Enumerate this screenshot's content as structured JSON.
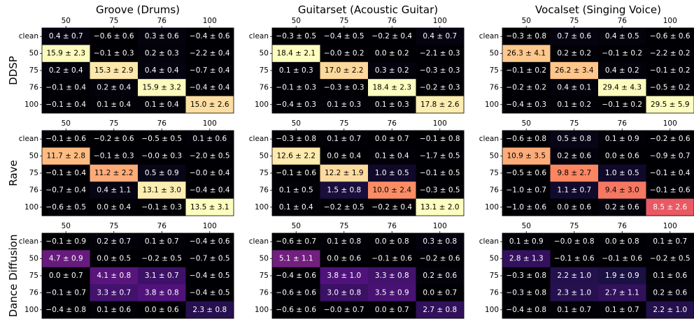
{
  "figure": {
    "columns": [
      {
        "title": "Groove (Drums)"
      },
      {
        "title": "Guitarset (Acoustic Guitar)"
      },
      {
        "title": "Vocalset (Singing Voice)"
      }
    ],
    "rows": [
      {
        "label": "DDSP"
      },
      {
        "label": "Rave"
      },
      {
        "label": "Dance Diffusion"
      }
    ]
  },
  "chart_data": [
    {
      "type": "heatmap",
      "title": "Groove (Drums)",
      "ylabel": "DDSP",
      "x_ticks": [
        "50",
        "75",
        "76",
        "100"
      ],
      "y_ticks": [
        "clean",
        "50",
        "75",
        "76",
        "100"
      ],
      "colormap": "magma",
      "vmin": 0,
      "vmax": 16,
      "values": [
        [
          0.4,
          -0.6,
          0.3,
          -0.4
        ],
        [
          15.9,
          -0.1,
          0.2,
          -2.2
        ],
        [
          0.2,
          15.3,
          0.4,
          -0.7
        ],
        [
          -0.1,
          0.2,
          15.9,
          -0.4
        ],
        [
          -0.1,
          0.1,
          0.1,
          15.0
        ]
      ],
      "labels": [
        [
          "0.4 ± 0.7",
          "−0.6 ± 0.6",
          "0.3 ± 0.6",
          "−0.4 ± 0.6"
        ],
        [
          "15.9 ± 2.3",
          "−0.1 ± 0.3",
          "0.2 ± 0.3",
          "−2.2 ± 0.4"
        ],
        [
          "0.2 ± 0.4",
          "15.3 ± 2.9",
          "0.4 ± 0.4",
          "−0.7 ± 0.4"
        ],
        [
          "−0.1 ± 0.4",
          "0.2 ± 0.4",
          "15.9 ± 3.2",
          "−0.4 ± 0.4"
        ],
        [
          "−0.1 ± 0.4",
          "0.1 ± 0.4",
          "0.1 ± 0.4",
          "15.0 ± 2.6"
        ]
      ]
    },
    {
      "type": "heatmap",
      "title": "Guitarset (Acoustic Guitar)",
      "ylabel": "DDSP",
      "x_ticks": [
        "50",
        "75",
        "76",
        "100"
      ],
      "y_ticks": [
        "clean",
        "50",
        "75",
        "76",
        "100"
      ],
      "colormap": "magma",
      "vmin": 0,
      "vmax": 18.4,
      "values": [
        [
          -0.3,
          -0.4,
          -0.2,
          0.4
        ],
        [
          18.4,
          -0.0,
          0.0,
          -2.1
        ],
        [
          0.1,
          17.0,
          0.3,
          -0.3
        ],
        [
          -0.1,
          -0.3,
          18.4,
          -0.2
        ],
        [
          -0.4,
          0.1,
          0.1,
          17.8
        ]
      ],
      "labels": [
        [
          "−0.3 ± 0.5",
          "−0.4 ± 0.5",
          "−0.2 ± 0.4",
          "0.4 ± 0.7"
        ],
        [
          "18.4 ± 2.1",
          "−0.0 ± 0.2",
          "0.0 ± 0.2",
          "−2.1 ± 0.3"
        ],
        [
          "0.1 ± 0.3",
          "17.0 ± 2.2",
          "0.3 ± 0.2",
          "−0.3 ± 0.3"
        ],
        [
          "−0.1 ± 0.3",
          "−0.3 ± 0.3",
          "18.4 ± 2.3",
          "−0.2 ± 0.3"
        ],
        [
          "−0.4 ± 0.3",
          "0.1 ± 0.3",
          "0.1 ± 0.3",
          "17.8 ± 2.6"
        ]
      ]
    },
    {
      "type": "heatmap",
      "title": "Vocalset (Singing Voice)",
      "ylabel": "DDSP",
      "x_ticks": [
        "50",
        "75",
        "76",
        "100"
      ],
      "y_ticks": [
        "clean",
        "50",
        "75",
        "76",
        "100"
      ],
      "colormap": "magma",
      "vmin": 0,
      "vmax": 29.5,
      "values": [
        [
          -0.3,
          0.7,
          0.4,
          -0.6
        ],
        [
          26.3,
          0.2,
          -0.1,
          -2.2
        ],
        [
          -0.1,
          26.2,
          0.4,
          -0.1
        ],
        [
          -0.2,
          0.4,
          29.4,
          -0.5
        ],
        [
          -0.4,
          0.1,
          -0.1,
          29.5
        ]
      ],
      "labels": [
        [
          "−0.3 ± 0.8",
          "0.7 ± 0.6",
          "0.4 ± 0.5",
          "−0.6 ± 0.6"
        ],
        [
          "26.3 ± 4.1",
          "0.2 ± 0.2",
          "−0.1 ± 0.2",
          "−2.2 ± 0.2"
        ],
        [
          "−0.1 ± 0.2",
          "26.2 ± 3.4",
          "0.4 ± 0.2",
          "−0.1 ± 0.2"
        ],
        [
          "−0.2 ± 0.2",
          "0.4 ± 0.1",
          "29.4 ± 4.3",
          "−0.5 ± 0.2"
        ],
        [
          "−0.4 ± 0.3",
          "0.1 ± 0.2",
          "−0.1 ± 0.2",
          "29.5 ± 5.9"
        ]
      ]
    },
    {
      "type": "heatmap",
      "title": "",
      "ylabel": "Rave",
      "x_ticks": [
        "50",
        "75",
        "76",
        "100"
      ],
      "y_ticks": [
        "clean",
        "50",
        "75",
        "76",
        "100"
      ],
      "colormap": "magma",
      "vmin": 0,
      "vmax": 13.5,
      "values": [
        [
          -0.1,
          -0.2,
          -0.5,
          0.1
        ],
        [
          11.7,
          -0.1,
          -0.0,
          -2.0
        ],
        [
          -0.1,
          11.2,
          0.5,
          -0.0
        ],
        [
          -0.7,
          0.4,
          13.1,
          -0.4
        ],
        [
          -0.6,
          0.0,
          -0.1,
          13.5
        ]
      ],
      "labels": [
        [
          "−0.1 ± 0.6",
          "−0.2 ± 0.6",
          "−0.5 ± 0.5",
          "0.1 ± 0.6"
        ],
        [
          "11.7 ± 2.8",
          "−0.1 ± 0.3",
          "−0.0 ± 0.3",
          "−2.0 ± 0.5"
        ],
        [
          "−0.1 ± 0.4",
          "11.2 ± 2.2",
          "0.5 ± 0.9",
          "−0.0 ± 0.4"
        ],
        [
          "−0.7 ± 0.4",
          "0.4 ± 1.1",
          "13.1 ± 3.0",
          "−0.4 ± 0.4"
        ],
        [
          "−0.6 ± 0.5",
          "0.0 ± 0.4",
          "−0.1 ± 0.3",
          "13.5 ± 3.1"
        ]
      ]
    },
    {
      "type": "heatmap",
      "title": "",
      "ylabel": "Rave",
      "x_ticks": [
        "50",
        "75",
        "76",
        "100"
      ],
      "y_ticks": [
        "clean",
        "50",
        "75",
        "76",
        "100"
      ],
      "colormap": "magma",
      "vmin": 0,
      "vmax": 13.1,
      "values": [
        [
          -0.3,
          0.1,
          0.0,
          -0.1
        ],
        [
          12.6,
          0.0,
          0.1,
          -1.7
        ],
        [
          -0.1,
          12.2,
          1.0,
          -0.1
        ],
        [
          0.1,
          1.5,
          10.0,
          -0.3
        ],
        [
          0.1,
          -0.2,
          -0.2,
          13.1
        ]
      ],
      "labels": [
        [
          "−0.3 ± 0.8",
          "0.1 ± 0.7",
          "0.0 ± 0.7",
          "−0.1 ± 0.8"
        ],
        [
          "12.6 ± 2.2",
          "0.0 ± 0.4",
          "0.1 ± 0.4",
          "−1.7 ± 0.5"
        ],
        [
          "−0.1 ± 0.6",
          "12.2 ± 1.9",
          "1.0 ± 0.5",
          "−0.1 ± 0.5"
        ],
        [
          "0.1 ± 0.5",
          "1.5 ± 0.8",
          "10.0 ± 2.4",
          "−0.3 ± 0.5"
        ],
        [
          "0.1 ± 0.4",
          "−0.2 ± 0.5",
          "−0.2 ± 0.4",
          "13.1 ± 2.0"
        ]
      ]
    },
    {
      "type": "heatmap",
      "title": "",
      "ylabel": "Rave",
      "x_ticks": [
        "50",
        "75",
        "76",
        "100"
      ],
      "y_ticks": [
        "clean",
        "50",
        "75",
        "76",
        "100"
      ],
      "colormap": "magma",
      "vmin": 0,
      "vmax": 13.1,
      "values": [
        [
          -0.6,
          0.5,
          0.1,
          -0.2
        ],
        [
          10.9,
          0.2,
          0.0,
          -0.9
        ],
        [
          -0.5,
          9.8,
          1.0,
          -0.1
        ],
        [
          -1.0,
          1.1,
          9.4,
          -0.1
        ],
        [
          -1.0,
          0.0,
          0.2,
          8.5
        ]
      ],
      "labels": [
        [
          "−0.6 ± 0.8",
          "0.5 ± 0.8",
          "0.1 ± 0.9",
          "−0.2 ± 0.6"
        ],
        [
          "10.9 ± 3.5",
          "0.2 ± 0.6",
          "0.0 ± 0.6",
          "−0.9 ± 0.7"
        ],
        [
          "−0.5 ± 0.6",
          "9.8 ± 2.7",
          "1.0 ± 0.5",
          "−0.1 ± 0.4"
        ],
        [
          "−1.0 ± 0.7",
          "1.1 ± 0.7",
          "9.4 ± 3.0",
          "−0.1 ± 0.6"
        ],
        [
          "−1.0 ± 0.6",
          "0.0 ± 0.6",
          "0.2 ± 0.6",
          "8.5 ± 2.6"
        ]
      ]
    },
    {
      "type": "heatmap",
      "title": "",
      "ylabel": "Dance Diffusion",
      "x_ticks": [
        "50",
        "75",
        "76",
        "100"
      ],
      "y_ticks": [
        "clean",
        "50",
        "75",
        "76",
        "100"
      ],
      "colormap": "magma",
      "vmin": 0,
      "vmax": 15,
      "values": [
        [
          -0.1,
          0.2,
          0.1,
          -0.4
        ],
        [
          4.7,
          0.0,
          -0.2,
          -0.7
        ],
        [
          0.0,
          4.1,
          3.1,
          -0.4
        ],
        [
          -0.1,
          3.3,
          3.8,
          -0.4
        ],
        [
          -0.4,
          0.1,
          0.0,
          2.3
        ]
      ],
      "labels": [
        [
          "−0.1 ± 0.9",
          "0.2 ± 0.7",
          "0.1 ± 0.7",
          "−0.4 ± 0.6"
        ],
        [
          "4.7 ± 0.9",
          "0.0 ± 0.5",
          "−0.2 ± 0.5",
          "−0.7 ± 0.5"
        ],
        [
          "0.0 ± 0.7",
          "4.1 ± 0.8",
          "3.1 ± 0.7",
          "−0.4 ± 0.5"
        ],
        [
          "−0.1 ± 0.7",
          "3.3 ± 0.7",
          "3.8 ± 0.8",
          "−0.4 ± 0.5"
        ],
        [
          "−0.4 ± 0.8",
          "0.1 ± 0.6",
          "0.0 ± 0.6",
          "2.3 ± 0.8"
        ]
      ]
    },
    {
      "type": "heatmap",
      "title": "",
      "ylabel": "Dance Diffusion",
      "x_ticks": [
        "50",
        "75",
        "76",
        "100"
      ],
      "y_ticks": [
        "clean",
        "50",
        "75",
        "76",
        "100"
      ],
      "colormap": "magma",
      "vmin": 0,
      "vmax": 15,
      "values": [
        [
          -0.6,
          0.1,
          0.0,
          0.3
        ],
        [
          5.1,
          0.0,
          -0.1,
          -0.2
        ],
        [
          -0.4,
          3.8,
          3.3,
          0.2
        ],
        [
          -0.6,
          3.0,
          3.5,
          0.0
        ],
        [
          -0.6,
          -0.0,
          0.0,
          2.7
        ]
      ],
      "labels": [
        [
          "−0.6 ± 0.7",
          "0.1 ± 0.8",
          "0.0 ± 0.8",
          "0.3 ± 0.8"
        ],
        [
          "5.1 ± 1.1",
          "0.0 ± 0.6",
          "−0.1 ± 0.6",
          "−0.2 ± 0.6"
        ],
        [
          "−0.4 ± 0.6",
          "3.8 ± 1.0",
          "3.3 ± 0.8",
          "0.2 ± 0.6"
        ],
        [
          "−0.6 ± 0.6",
          "3.0 ± 0.8",
          "3.5 ± 0.9",
          "0.0 ± 0.7"
        ],
        [
          "−0.6 ± 0.6",
          "−0.0 ± 0.7",
          "0.0 ± 0.7",
          "2.7 ± 0.8"
        ]
      ]
    },
    {
      "type": "heatmap",
      "title": "",
      "ylabel": "Dance Diffusion",
      "x_ticks": [
        "50",
        "75",
        "76",
        "100"
      ],
      "y_ticks": [
        "clean",
        "50",
        "75",
        "76",
        "100"
      ],
      "colormap": "magma",
      "vmin": 0,
      "vmax": 15,
      "values": [
        [
          0.1,
          -0.0,
          0.0,
          0.1
        ],
        [
          2.8,
          -0.1,
          -0.1,
          -0.2
        ],
        [
          -0.3,
          2.2,
          1.9,
          0.1
        ],
        [
          -0.3,
          2.3,
          2.7,
          0.2
        ],
        [
          -0.4,
          0.1,
          0.1,
          2.2
        ]
      ],
      "labels": [
        [
          "0.1 ± 0.9",
          "−0.0 ± 0.8",
          "0.0 ± 0.8",
          "0.1 ± 0.7"
        ],
        [
          "2.8 ± 1.3",
          "−0.1 ± 0.6",
          "−0.1 ± 0.6",
          "−0.2 ± 0.5"
        ],
        [
          "−0.3 ± 0.8",
          "2.2 ± 1.0",
          "1.9 ± 0.9",
          "0.1 ± 0.6"
        ],
        [
          "−0.3 ± 0.8",
          "2.3 ± 1.0",
          "2.7 ± 1.1",
          "0.2 ± 0.6"
        ],
        [
          "−0.4 ± 0.8",
          "0.1 ± 0.7",
          "0.1 ± 0.7",
          "2.2 ± 1.0"
        ]
      ]
    }
  ]
}
